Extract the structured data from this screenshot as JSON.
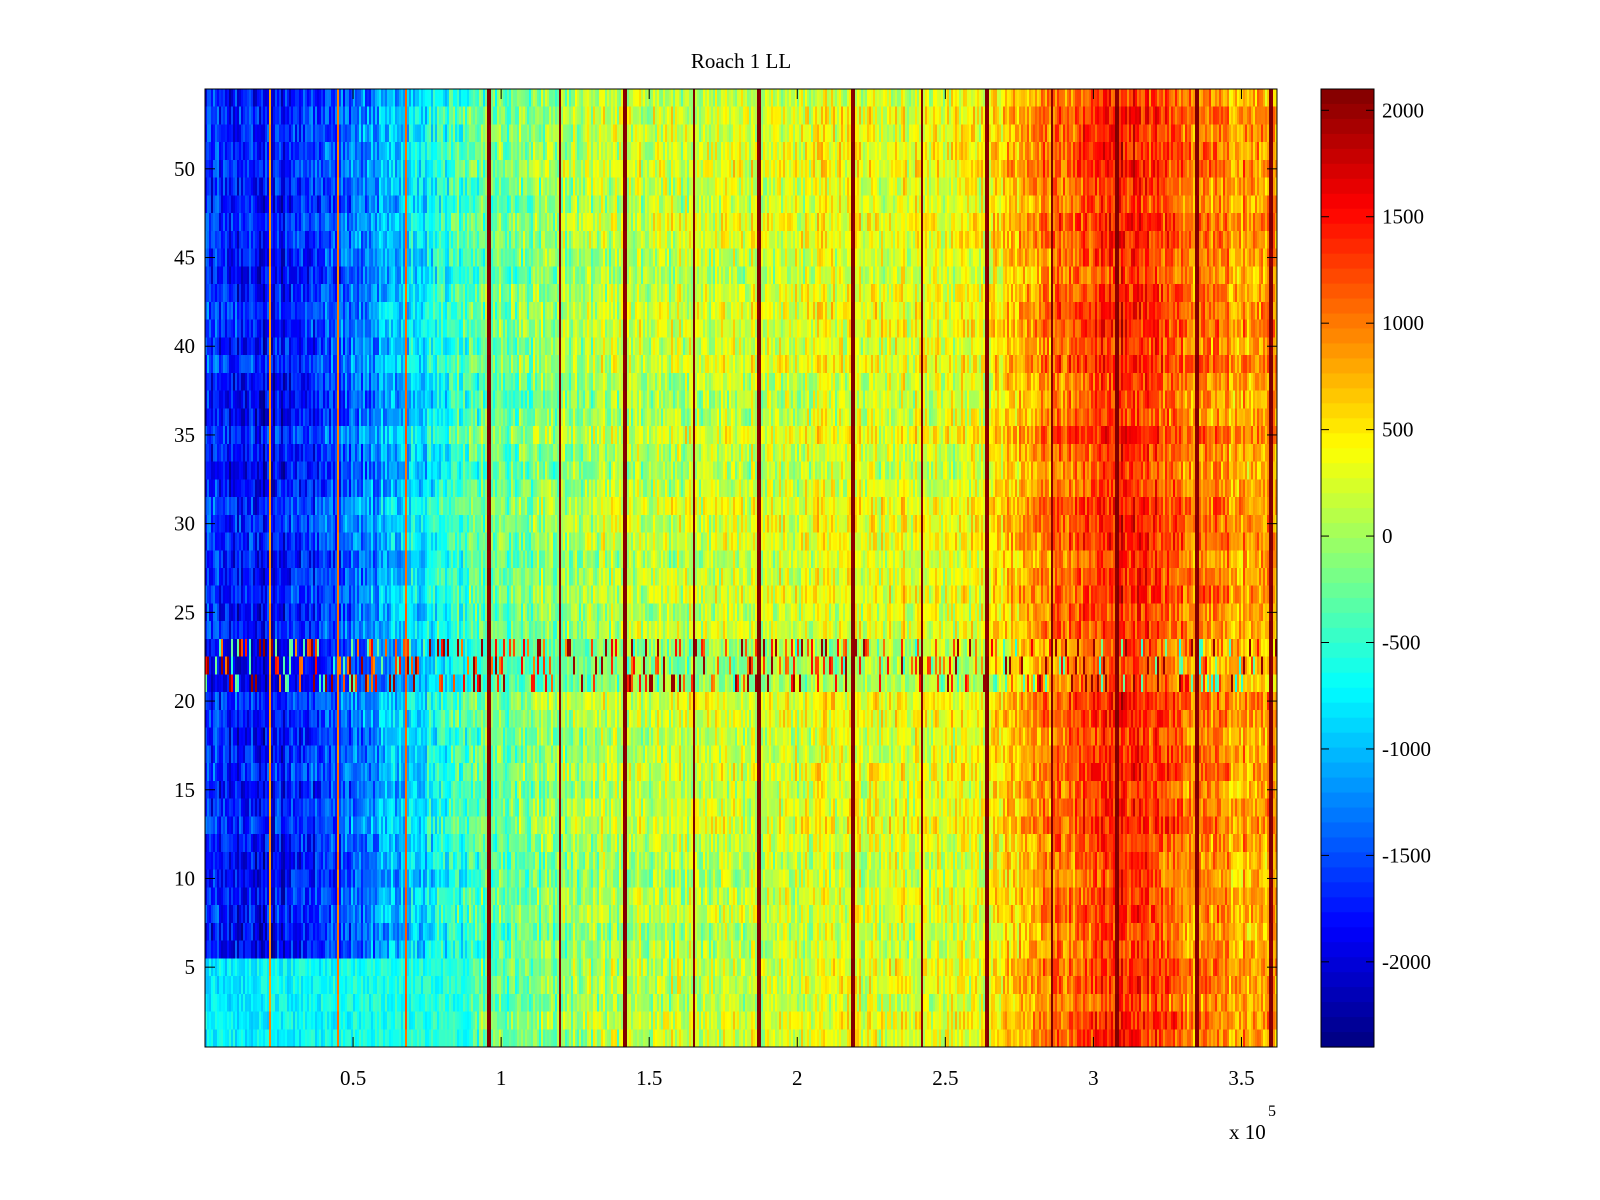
{
  "chart_data": {
    "type": "heatmap",
    "title": "Roach 1 LL",
    "xlabel": "",
    "ylabel": "",
    "x_exponent_label": "x 10",
    "x_exponent_power": "5",
    "xlim": [
      0,
      3.62
    ],
    "ylim": [
      0.5,
      54.5
    ],
    "xticks": [
      0.5,
      1,
      1.5,
      2,
      2.5,
      3,
      3.5
    ],
    "xtick_labels": [
      "0.5",
      "1",
      "1.5",
      "2",
      "2.5",
      "3",
      "3.5"
    ],
    "yticks": [
      5,
      10,
      15,
      20,
      25,
      30,
      35,
      40,
      45,
      50
    ],
    "ytick_labels": [
      "5",
      "10",
      "15",
      "20",
      "25",
      "30",
      "35",
      "40",
      "45",
      "50"
    ],
    "colormap": "jet",
    "clim": [
      -2400,
      2100
    ],
    "colorbar_ticks": [
      2000,
      1500,
      1000,
      500,
      0,
      -500,
      -1000,
      -1500,
      -2000
    ],
    "colorbar_tick_labels": [
      "2000",
      "1500",
      "1000",
      "500",
      "0",
      "-500",
      "-1000",
      "-1500",
      "-2000"
    ],
    "rows": 54,
    "trend_x": [
      0,
      0.22,
      0.45,
      0.68,
      0.95,
      1.4,
      2.0,
      2.6,
      2.82,
      3.05,
      3.15,
      3.3,
      3.62
    ],
    "trend_values": [
      -1700,
      -1850,
      -1500,
      -900,
      -250,
      100,
      250,
      300,
      900,
      1350,
      1450,
      1000,
      750
    ],
    "low_rows_value_range": [
      1,
      5
    ],
    "disturbed_rows": [
      21,
      22,
      23
    ],
    "stripes": [
      {
        "x": 0.22,
        "value": 900
      },
      {
        "x": 0.45,
        "value": 1000
      },
      {
        "x": 0.68,
        "value": 1100
      },
      {
        "x": 0.96,
        "value": 2100
      },
      {
        "x": 1.2,
        "value": 2100
      },
      {
        "x": 1.42,
        "value": 2100
      },
      {
        "x": 1.65,
        "value": 2100
      },
      {
        "x": 1.87,
        "value": 2100
      },
      {
        "x": 2.19,
        "value": 2100
      },
      {
        "x": 2.42,
        "value": 2100
      },
      {
        "x": 2.64,
        "value": 2100
      },
      {
        "x": 2.86,
        "value": 2100
      },
      {
        "x": 3.08,
        "value": 2100
      },
      {
        "x": 3.35,
        "value": 2100
      },
      {
        "x": 3.6,
        "value": 2100
      }
    ]
  }
}
